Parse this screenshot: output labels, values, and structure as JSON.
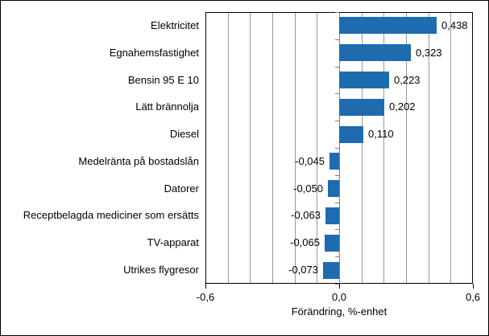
{
  "chart_data": {
    "type": "bar",
    "orientation": "horizontal",
    "title": "",
    "xlabel": "Förändring, %-enhet",
    "ylabel": "",
    "xlim": [
      -0.6,
      0.6
    ],
    "gridline_step": 0.1,
    "grid": true,
    "legend": false,
    "bar_color": "#1E6BB0",
    "gridline_color": "#999999",
    "zero_axis_color": "#7f7f7f",
    "categories": [
      "Elektricitet",
      "Egnahemsfastighet",
      "Bensin 95 E 10",
      "Lätt brännolja",
      "Diesel",
      "Medelränta på bostadslån",
      "Datorer",
      "Receptbelagda mediciner som ersätts",
      "TV-apparat",
      "Utrikes flygresor"
    ],
    "values": [
      0.438,
      0.323,
      0.223,
      0.202,
      0.11,
      -0.045,
      -0.05,
      -0.063,
      -0.065,
      -0.073
    ],
    "value_labels": [
      "0,438",
      "0,323",
      "0,223",
      "0,202",
      "0,110",
      "-0,045",
      "-0,050",
      "-0,063",
      "-0,065",
      "-0,073"
    ],
    "x_ticks": [
      {
        "value": -0.6,
        "label": "-0,6"
      },
      {
        "value": 0.0,
        "label": "0,0"
      },
      {
        "value": 0.6,
        "label": "0,6"
      }
    ]
  }
}
